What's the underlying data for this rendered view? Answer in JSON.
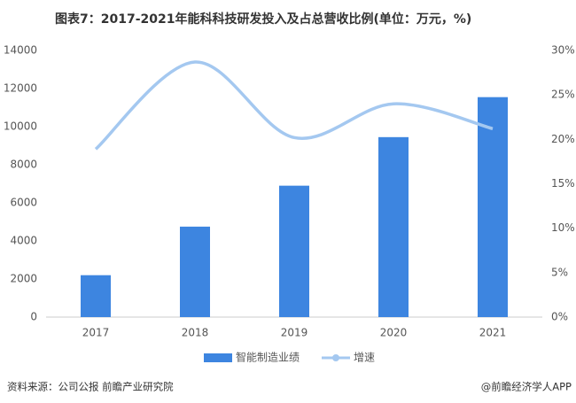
{
  "chart_data": {
    "type": "bar-line",
    "title": "图表7：2017-2021年能科科技研发投入及占总营收比例(单位：万元，%)",
    "categories": [
      "2017",
      "2018",
      "2019",
      "2020",
      "2021"
    ],
    "series": [
      {
        "name": "智能制造业绩",
        "type": "bar",
        "color": "#3d85e0",
        "values": [
          2200,
          4750,
          6900,
          9450,
          11550
        ]
      },
      {
        "name": "增速",
        "type": "line",
        "axis": "y2",
        "color": "#a4c8f0",
        "values": [
          18.9,
          28.7,
          20.2,
          24.0,
          21.2
        ]
      }
    ],
    "ylim": [
      0,
      14000
    ],
    "yticks": [
      0,
      2000,
      4000,
      6000,
      8000,
      10000,
      12000,
      14000
    ],
    "y2lim": [
      0,
      30
    ],
    "y2ticks": [
      {
        "value": 0,
        "label": "0%"
      },
      {
        "value": 5,
        "label": "5%"
      },
      {
        "value": 10,
        "label": "10%"
      },
      {
        "value": 15,
        "label": "15%"
      },
      {
        "value": 20,
        "label": "20%"
      },
      {
        "value": 25,
        "label": "25%"
      },
      {
        "value": 30,
        "label": "30%"
      }
    ],
    "source": "资料来源：公司公报 前瞻产业研究院",
    "credit": "@前瞻经济学人APP"
  }
}
